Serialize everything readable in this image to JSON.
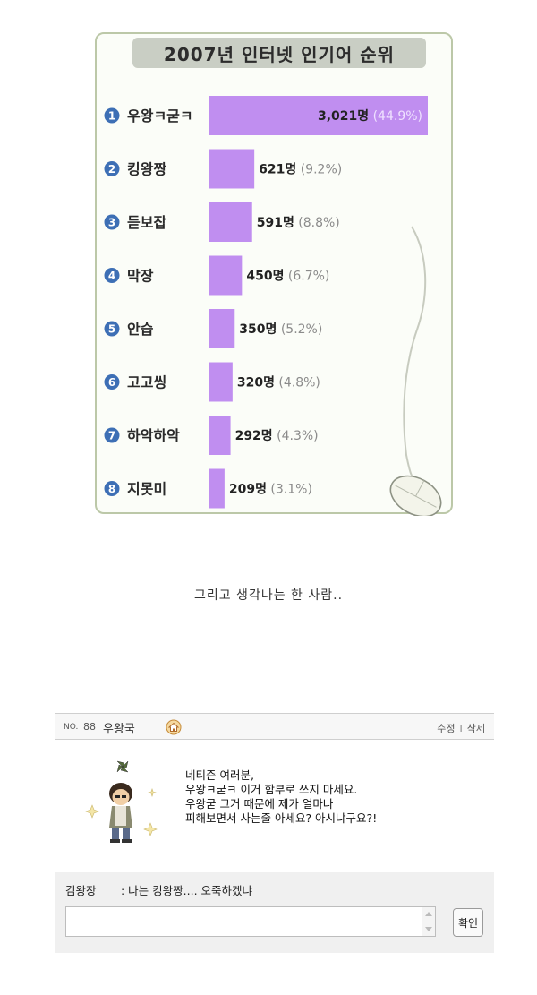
{
  "chart_data": {
    "type": "bar",
    "title": "2007년 인터넷 인기어 순위",
    "categories": [
      "우왕ㅋ굳ㅋ",
      "킹왕짱",
      "듣보잡",
      "막장",
      "안습",
      "고고씽",
      "하악하악",
      "지못미"
    ],
    "values": [
      3021,
      621,
      591,
      450,
      350,
      320,
      292,
      209
    ],
    "value_labels": [
      "3,021명",
      "621명",
      "591명",
      "450명",
      "350명",
      "320명",
      "292명",
      "209명"
    ],
    "percent_labels": [
      "(44.9%)",
      "(9.2%)",
      "(8.8%)",
      "(6.7%)",
      "(5.2%)",
      "(4.8%)",
      "(4.3%)",
      "(3.1%)"
    ],
    "ranks": [
      "1",
      "2",
      "3",
      "4",
      "5",
      "6",
      "7",
      "8"
    ],
    "bar_color": "#c08ef0",
    "rank_badge_color": "#3d6fb5"
  },
  "caption": "그리고 생각나는 한 사람..",
  "guestbook": {
    "no_label": "NO.",
    "number": "88",
    "author": "우왕국",
    "edit": "수정",
    "separator": "I",
    "delete": "삭제",
    "message": [
      "네티즌 여러분,",
      "우왕ㅋ굳ㅋ 이거 함부로 쓰지 마세요.",
      "우왕굳 그거 때문에 제가 얼마나",
      "피해보면서 사는줄 아세요? 아시냐구요?!"
    ],
    "reply": {
      "name": "김왕장",
      "text": ": 나는 킹왕짱.... 오죽하겠냐"
    },
    "confirm_label": "확인"
  }
}
